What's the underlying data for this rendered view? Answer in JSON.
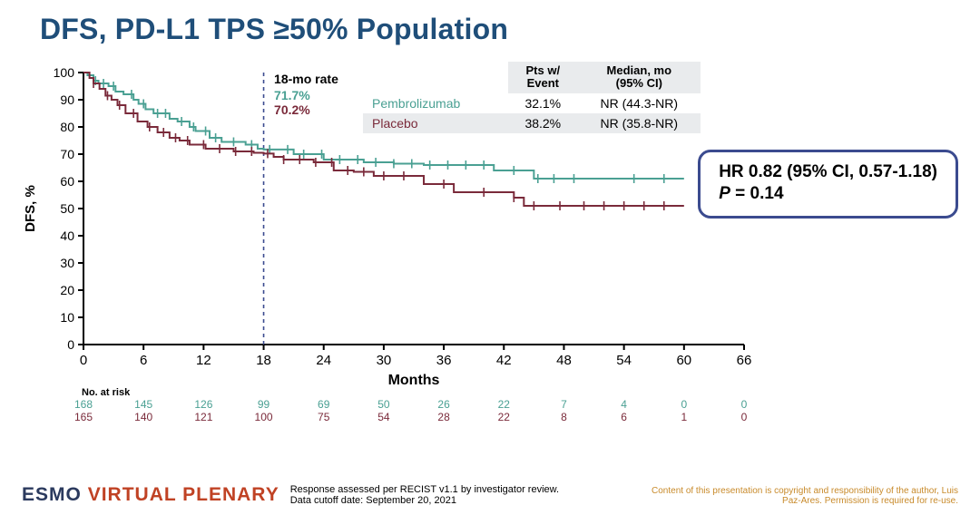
{
  "title": "DFS, PD-L1 TPS ≥50% Population",
  "summary_table": {
    "columns": [
      "",
      "Pts w/\nEvent",
      "Median, mo\n(95% CI)"
    ],
    "rows": [
      {
        "name": "Pembrolizumab",
        "color": "#4aa093",
        "event": "32.1%",
        "median": "NR (44.3-NR)"
      },
      {
        "name": "Placebo",
        "color": "#7a2a3a",
        "event": "38.2%",
        "median": "NR (35.8-NR)"
      }
    ]
  },
  "hr_box": {
    "line1": "HR 0.82 (95% CI, 0.57-1.18)",
    "line2_prefix": "P",
    "line2_rest": " = 0.14"
  },
  "chart": {
    "type": "kaplan-meier",
    "ylabel": "DFS, %",
    "xlabel": "Months",
    "ylim": [
      0,
      100
    ],
    "ytick_step": 10,
    "xlim": [
      0,
      66
    ],
    "xtick_step": 6,
    "background_color": "#ffffff",
    "axis_color": "#000000",
    "line_width": 2,
    "reference_line": {
      "x": 18,
      "color": "#3b4b8f",
      "dash": "4,4"
    },
    "annotation": {
      "title": "18-mo rate",
      "values": [
        "71.7%",
        "70.2%"
      ],
      "colors": [
        "#4aa093",
        "#7a2a3a"
      ],
      "x": 18.5
    },
    "series": [
      {
        "name": "Pembrolizumab",
        "color": "#4aa093",
        "points": [
          [
            0,
            100
          ],
          [
            0.4,
            100
          ],
          [
            0.4,
            99
          ],
          [
            1,
            99
          ],
          [
            1,
            97
          ],
          [
            1.5,
            97
          ],
          [
            1.5,
            96
          ],
          [
            2.5,
            96
          ],
          [
            2.5,
            95
          ],
          [
            3.2,
            95
          ],
          [
            3.2,
            93
          ],
          [
            4,
            93
          ],
          [
            4,
            92
          ],
          [
            5,
            92
          ],
          [
            5,
            90
          ],
          [
            5.5,
            90
          ],
          [
            5.5,
            88.5
          ],
          [
            6.2,
            88.5
          ],
          [
            6.2,
            86.5
          ],
          [
            7,
            86.5
          ],
          [
            7,
            85
          ],
          [
            8.6,
            85
          ],
          [
            8.6,
            83
          ],
          [
            9.4,
            83
          ],
          [
            9.4,
            82
          ],
          [
            10.6,
            82
          ],
          [
            10.6,
            80
          ],
          [
            11.2,
            80
          ],
          [
            11.2,
            78.5
          ],
          [
            12.6,
            78.5
          ],
          [
            12.6,
            76
          ],
          [
            13.8,
            76
          ],
          [
            13.8,
            74.5
          ],
          [
            16.2,
            74.5
          ],
          [
            16.2,
            73.5
          ],
          [
            17.4,
            73.5
          ],
          [
            17.4,
            72
          ],
          [
            18,
            72
          ],
          [
            18,
            71.7
          ],
          [
            21,
            71.7
          ],
          [
            21,
            70
          ],
          [
            24,
            70
          ],
          [
            24,
            68
          ],
          [
            28,
            68
          ],
          [
            28,
            67
          ],
          [
            31,
            67
          ],
          [
            31,
            66.5
          ],
          [
            34,
            66.5
          ],
          [
            34,
            66
          ],
          [
            41,
            66
          ],
          [
            41,
            64
          ],
          [
            45,
            64
          ],
          [
            45,
            61
          ],
          [
            60,
            61
          ]
        ],
        "ticks": [
          1.2,
          2,
          3,
          4.8,
          6,
          7.4,
          8.2,
          9.8,
          11,
          12.2,
          13.2,
          15,
          16.8,
          18.6,
          20.4,
          22,
          23.8,
          25.6,
          27.4,
          29.2,
          31,
          32.8,
          34.6,
          36.4,
          38.2,
          40,
          43,
          45.4,
          47,
          49,
          55,
          58
        ]
      },
      {
        "name": "Placebo",
        "color": "#7a2a3a",
        "points": [
          [
            0,
            100
          ],
          [
            0.6,
            100
          ],
          [
            0.6,
            98
          ],
          [
            1,
            98
          ],
          [
            1,
            96
          ],
          [
            1.6,
            96
          ],
          [
            1.6,
            94
          ],
          [
            2.2,
            94
          ],
          [
            2.2,
            91.5
          ],
          [
            2.8,
            91.5
          ],
          [
            2.8,
            90
          ],
          [
            3.4,
            90
          ],
          [
            3.4,
            88
          ],
          [
            4.2,
            88
          ],
          [
            4.2,
            85
          ],
          [
            5.4,
            85
          ],
          [
            5.4,
            82
          ],
          [
            6.4,
            82
          ],
          [
            6.4,
            80
          ],
          [
            7.4,
            80
          ],
          [
            7.4,
            78
          ],
          [
            8.6,
            78
          ],
          [
            8.6,
            76
          ],
          [
            9.6,
            76
          ],
          [
            9.6,
            75
          ],
          [
            10.6,
            75
          ],
          [
            10.6,
            73.5
          ],
          [
            12.2,
            73.5
          ],
          [
            12.2,
            72
          ],
          [
            15,
            72
          ],
          [
            15,
            71
          ],
          [
            17,
            71
          ],
          [
            17,
            70.5
          ],
          [
            18,
            70.5
          ],
          [
            18,
            70.2
          ],
          [
            19,
            70.2
          ],
          [
            19,
            69
          ],
          [
            20,
            69
          ],
          [
            20,
            68
          ],
          [
            23,
            68
          ],
          [
            23,
            67
          ],
          [
            25,
            67
          ],
          [
            25,
            64
          ],
          [
            27,
            64
          ],
          [
            27,
            63.5
          ],
          [
            29,
            63.5
          ],
          [
            29,
            62
          ],
          [
            34,
            62
          ],
          [
            34,
            59
          ],
          [
            37,
            59
          ],
          [
            37,
            56
          ],
          [
            43,
            56
          ],
          [
            43,
            54
          ],
          [
            44,
            54
          ],
          [
            44,
            51
          ],
          [
            60,
            51
          ]
        ],
        "ticks": [
          1,
          2.4,
          3.6,
          5,
          6.6,
          8,
          9.2,
          10.4,
          12,
          13.6,
          15.2,
          16.8,
          18.4,
          20,
          21.6,
          23.2,
          24.8,
          26.4,
          28,
          30,
          32,
          36,
          40,
          43,
          45,
          47.6,
          50,
          52,
          54,
          56,
          58
        ]
      }
    ]
  },
  "at_risk": {
    "label": "No. at risk",
    "x_values": [
      0,
      6,
      12,
      18,
      24,
      30,
      36,
      42,
      48,
      54,
      60,
      66
    ],
    "rows": [
      {
        "color": "#4aa093",
        "values": [
          168,
          145,
          126,
          99,
          69,
          50,
          26,
          22,
          7,
          4,
          0,
          0
        ]
      },
      {
        "color": "#7a2a3a",
        "values": [
          165,
          140,
          121,
          100,
          75,
          54,
          28,
          22,
          8,
          6,
          1,
          0
        ]
      }
    ]
  },
  "footer": {
    "brand1": "ESMO ",
    "brand2": "VIRTUAL PLENARY",
    "center1": "Response assessed per RECIST v1.1 by investigator review.",
    "center2": "Data cutoff date: September 20, 2021",
    "right": "Content of this presentation is copyright and responsibility of the author, Luis Paz-Ares. Permission is required for re-use."
  }
}
